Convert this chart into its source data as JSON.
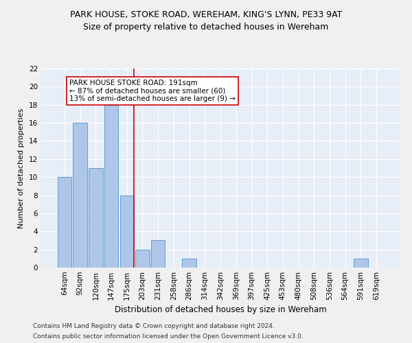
{
  "title": "PARK HOUSE, STOKE ROAD, WEREHAM, KING'S LYNN, PE33 9AT",
  "subtitle": "Size of property relative to detached houses in Wereham",
  "xlabel": "Distribution of detached houses by size in Wereham",
  "ylabel": "Number of detached properties",
  "categories": [
    "64sqm",
    "92sqm",
    "120sqm",
    "147sqm",
    "175sqm",
    "203sqm",
    "231sqm",
    "258sqm",
    "286sqm",
    "314sqm",
    "342sqm",
    "369sqm",
    "397sqm",
    "425sqm",
    "453sqm",
    "480sqm",
    "508sqm",
    "536sqm",
    "564sqm",
    "591sqm",
    "619sqm"
  ],
  "values": [
    10,
    16,
    11,
    18,
    8,
    2,
    3,
    0,
    1,
    0,
    0,
    0,
    0,
    0,
    0,
    0,
    0,
    0,
    0,
    1,
    0
  ],
  "bar_color": "#aec6e8",
  "bar_edge_color": "#5a9fd4",
  "vline_color": "#cc0000",
  "annotation_line1": "PARK HOUSE STOKE ROAD: 191sqm",
  "annotation_line2": "← 87% of detached houses are smaller (60)",
  "annotation_line3": "13% of semi-detached houses are larger (9) →",
  "annotation_box_color": "#ffffff",
  "annotation_box_edge": "#cc0000",
  "ylim": [
    0,
    22
  ],
  "yticks": [
    0,
    2,
    4,
    6,
    8,
    10,
    12,
    14,
    16,
    18,
    20,
    22
  ],
  "footer_line1": "Contains HM Land Registry data © Crown copyright and database right 2024.",
  "footer_line2": "Contains public sector information licensed under the Open Government Licence v3.0.",
  "background_color": "#e8eef8",
  "grid_color": "#ffffff",
  "fig_background": "#f0f0f0",
  "title_fontsize": 9,
  "subtitle_fontsize": 9,
  "xlabel_fontsize": 8.5,
  "ylabel_fontsize": 8,
  "tick_fontsize": 7.5,
  "annotation_fontsize": 7.5,
  "footer_fontsize": 6.5
}
